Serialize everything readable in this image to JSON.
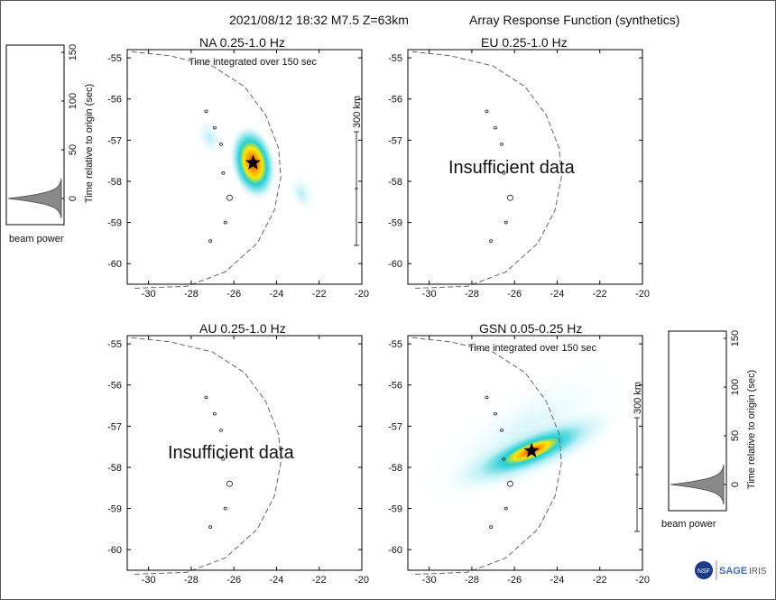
{
  "header": {
    "event": "2021/08/12 18:32  M7.5  Z=63km",
    "title": "Array Response Function (synthetics)"
  },
  "panels": [
    {
      "id": "NA",
      "title": "NA  0.25-1.0 Hz",
      "has_data": true,
      "time_note": "Time integrated over 150 sec",
      "scale_label": "300 km"
    },
    {
      "id": "EU",
      "title": "EU  0.25-1.0 Hz",
      "has_data": false,
      "message": "Insufficient data"
    },
    {
      "id": "AU",
      "title": "AU  0.25-1.0 Hz",
      "has_data": false,
      "message": "Insufficient data"
    },
    {
      "id": "GSN",
      "title": "GSN  0.05-0.25 Hz",
      "has_data": true,
      "time_note": "Time integrated over 150 sec",
      "scale_label": "300 km"
    }
  ],
  "beam_power": {
    "label": "beam power",
    "ylabel": "Time relative to origin (sec)",
    "ticks": [
      "0",
      "50",
      "100",
      "150"
    ]
  },
  "logo": {
    "text": "SAGE",
    "iris": "IRIS",
    "badge": "NSF"
  },
  "colors": {
    "peak": "#ff1a00",
    "mid": "#ffe800",
    "outer": "#00d0d0",
    "halo": "#dff7fb",
    "contour": "#777777"
  },
  "chart_data": [
    {
      "type": "heatmap",
      "panel": "NA",
      "xlim": [
        -31,
        -20
      ],
      "ylim": [
        -60.5,
        -54.8
      ],
      "xticks": [
        -30,
        -28,
        -26,
        -24,
        -22,
        -20
      ],
      "yticks": [
        -55,
        -56,
        -57,
        -58,
        -59,
        -60
      ],
      "peak": {
        "lon": -25.1,
        "lat": -57.55
      },
      "marker": "star"
    },
    {
      "type": "heatmap",
      "panel": "EU",
      "xlim": [
        -31,
        -20
      ],
      "ylim": [
        -60.5,
        -54.8
      ],
      "xticks": [
        -30,
        -28,
        -26,
        -24,
        -22,
        -20
      ],
      "yticks": [
        -55,
        -56,
        -57,
        -58,
        -59,
        -60
      ]
    },
    {
      "type": "heatmap",
      "panel": "AU",
      "xlim": [
        -31,
        -20
      ],
      "ylim": [
        -60.5,
        -54.8
      ],
      "xticks": [
        -30,
        -28,
        -26,
        -24,
        -22,
        -20
      ],
      "yticks": [
        -55,
        -56,
        -57,
        -58,
        -59,
        -60
      ]
    },
    {
      "type": "heatmap",
      "panel": "GSN",
      "xlim": [
        -31,
        -20
      ],
      "ylim": [
        -60.5,
        -54.8
      ],
      "xticks": [
        -30,
        -28,
        -26,
        -24,
        -22,
        -20
      ],
      "yticks": [
        -55,
        -56,
        -57,
        -58,
        -59,
        -60
      ],
      "peak": {
        "lon": -25.2,
        "lat": -57.6
      },
      "marker": "star"
    }
  ]
}
